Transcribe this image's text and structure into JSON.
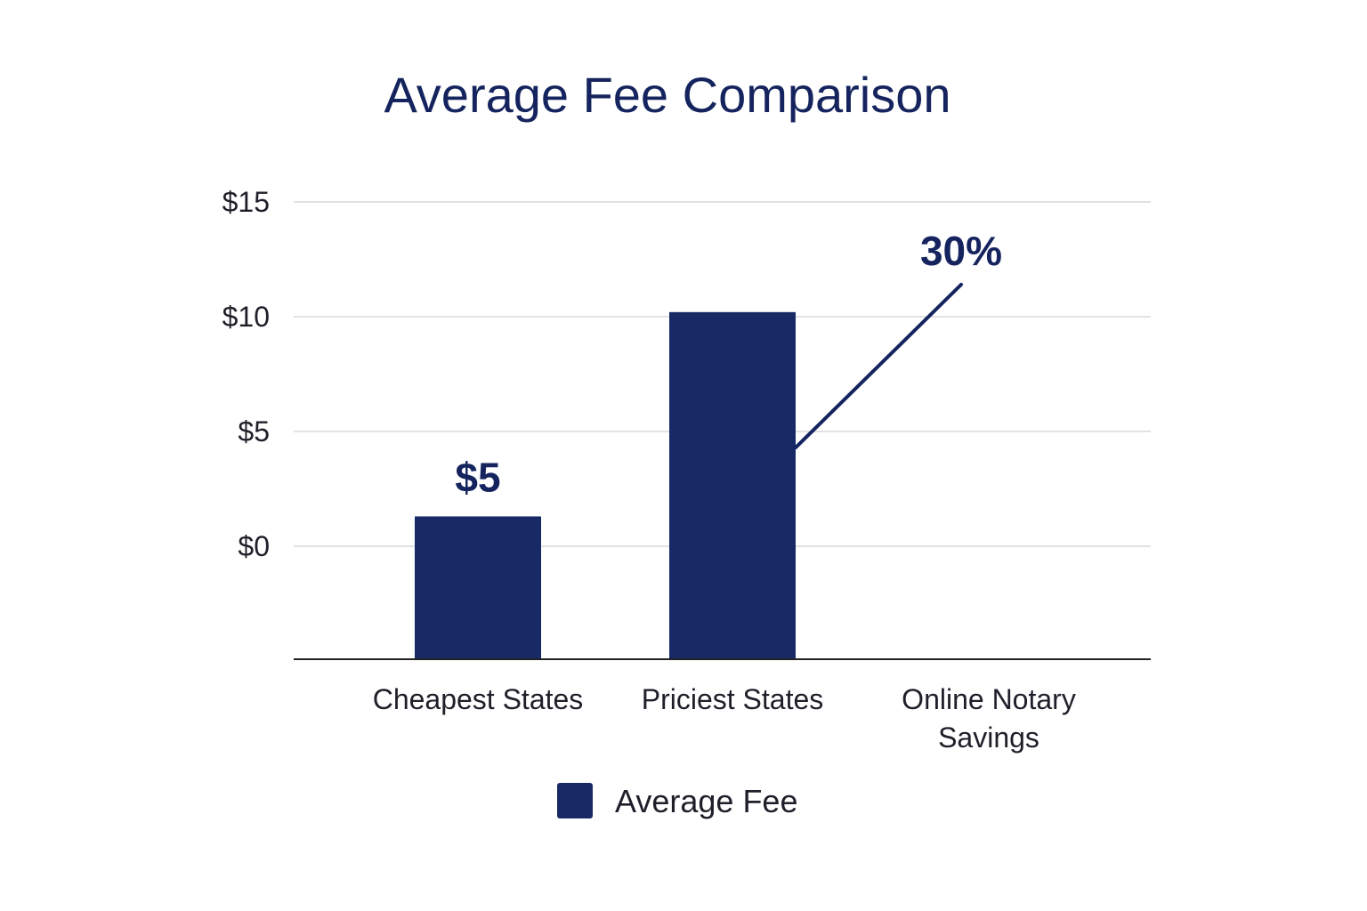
{
  "chart_data": {
    "type": "bar",
    "title": "Average Fee Comparison",
    "xlabel": "",
    "ylabel": "",
    "categories": [
      "Cheapest States",
      "Priciest States",
      "Online Notary Savings"
    ],
    "category_lines": [
      [
        "Cheapest States"
      ],
      [
        "Priciest States"
      ],
      [
        "Online Notary",
        "Savings"
      ]
    ],
    "series": [
      {
        "name": "Average Fee",
        "values": [
          1.3,
          10.2,
          null
        ],
        "color": "#172a66"
      }
    ],
    "ylim": [
      -5,
      15
    ],
    "yticks": [
      15,
      10,
      5,
      0
    ],
    "ytick_labels": [
      "$15",
      "$10",
      "$5",
      "$0"
    ],
    "grid": true,
    "legend_position": "bottom-center",
    "annotations": [
      {
        "text": "$5",
        "category": "Cheapest States"
      },
      {
        "text": "30%",
        "category": "Online Notary Savings",
        "arrow_from": {
          "category": "Priciest States",
          "value": 4.3
        },
        "arrow_to": {
          "category": "Online Notary Savings",
          "value": 11.4
        }
      }
    ]
  }
}
